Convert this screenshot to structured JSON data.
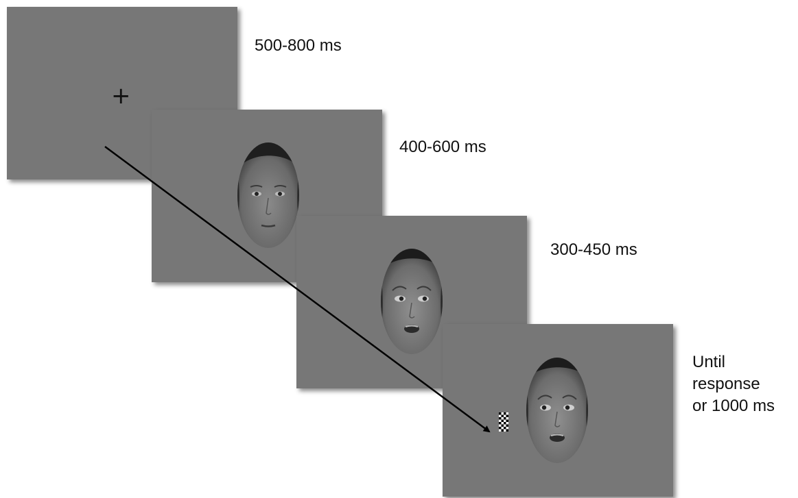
{
  "frames": [
    {
      "stimulus": "fixation-cross",
      "duration": "500-800 ms"
    },
    {
      "stimulus": "neutral-face",
      "duration": "400-600 ms"
    },
    {
      "stimulus": "fearful-face",
      "duration": "300-450 ms"
    },
    {
      "stimulus": "fearful-face-with-target",
      "duration_lines": [
        "Until",
        "response",
        "or 1000 ms"
      ]
    }
  ],
  "fixation_symbol": "+",
  "colors": {
    "screen_background": "#777777",
    "text": "#111111",
    "arrow": "#000000"
  }
}
